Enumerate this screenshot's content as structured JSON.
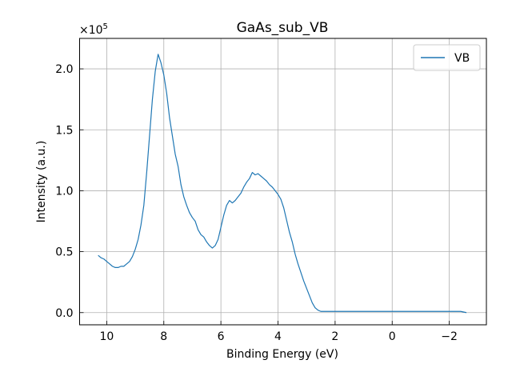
{
  "chart_data": {
    "type": "line",
    "title": "GaAs_sub_VB",
    "xlabel": "Binding Energy (eV)",
    "ylabel": "Intensity (a.u.)",
    "xlim": [
      10.95,
      -3.3
    ],
    "ylim": [
      -0.1,
      2.25
    ],
    "y_multiplier_label": "×10",
    "y_multiplier_exp": "5",
    "x_ticks": [
      10,
      8,
      6,
      4,
      2,
      0,
      -2
    ],
    "x_tick_labels": [
      "10",
      "8",
      "6",
      "4",
      "2",
      "0",
      "−2"
    ],
    "y_ticks": [
      0.0,
      0.5,
      1.0,
      1.5,
      2.0
    ],
    "y_tick_labels": [
      "0.0",
      "0.5",
      "1.0",
      "1.5",
      "2.0"
    ],
    "grid": true,
    "legend_position": "top-right",
    "line_color": "#1f77b4",
    "series": [
      {
        "name": "VB",
        "x": [
          10.3,
          10.2,
          10.1,
          10.0,
          9.9,
          9.8,
          9.7,
          9.6,
          9.5,
          9.4,
          9.3,
          9.2,
          9.1,
          9.0,
          8.9,
          8.8,
          8.7,
          8.6,
          8.5,
          8.4,
          8.3,
          8.2,
          8.1,
          8.0,
          7.9,
          7.8,
          7.7,
          7.6,
          7.5,
          7.4,
          7.3,
          7.2,
          7.1,
          7.0,
          6.9,
          6.8,
          6.7,
          6.6,
          6.5,
          6.4,
          6.3,
          6.2,
          6.1,
          6.0,
          5.9,
          5.8,
          5.7,
          5.6,
          5.5,
          5.4,
          5.3,
          5.2,
          5.1,
          5.0,
          4.9,
          4.8,
          4.7,
          4.6,
          4.5,
          4.4,
          4.3,
          4.2,
          4.1,
          4.0,
          3.9,
          3.8,
          3.7,
          3.6,
          3.5,
          3.4,
          3.3,
          3.2,
          3.1,
          3.0,
          2.9,
          2.8,
          2.7,
          2.6,
          2.5,
          2.4,
          2.3,
          2.2,
          2.1,
          2.0,
          1.9,
          1.8,
          1.7,
          1.6,
          1.5,
          1.4,
          1.3,
          1.2,
          1.1,
          1.0,
          0.9,
          0.8,
          0.6,
          0.4,
          0.2,
          0.0,
          -0.2,
          -0.4,
          -0.6,
          -0.8,
          -1.0,
          -1.2,
          -1.4,
          -1.6,
          -1.8,
          -2.0,
          -2.2,
          -2.4,
          -2.6
        ],
        "values": [
          0.47,
          0.45,
          0.44,
          0.42,
          0.4,
          0.38,
          0.37,
          0.37,
          0.38,
          0.38,
          0.4,
          0.42,
          0.46,
          0.52,
          0.6,
          0.72,
          0.88,
          1.15,
          1.45,
          1.75,
          1.98,
          2.12,
          2.05,
          1.95,
          1.8,
          1.6,
          1.45,
          1.3,
          1.2,
          1.05,
          0.95,
          0.88,
          0.82,
          0.78,
          0.75,
          0.68,
          0.64,
          0.62,
          0.58,
          0.55,
          0.53,
          0.55,
          0.6,
          0.7,
          0.8,
          0.88,
          0.92,
          0.9,
          0.92,
          0.95,
          0.98,
          1.03,
          1.07,
          1.1,
          1.15,
          1.13,
          1.14,
          1.12,
          1.1,
          1.08,
          1.05,
          1.03,
          1.0,
          0.97,
          0.93,
          0.86,
          0.76,
          0.66,
          0.58,
          0.48,
          0.4,
          0.33,
          0.26,
          0.2,
          0.14,
          0.08,
          0.04,
          0.02,
          0.01,
          0.01,
          0.01,
          0.01,
          0.01,
          0.01,
          0.01,
          0.01,
          0.01,
          0.01,
          0.01,
          0.01,
          0.01,
          0.01,
          0.01,
          0.01,
          0.01,
          0.01,
          0.01,
          0.01,
          0.01,
          0.01,
          0.01,
          0.01,
          0.01,
          0.01,
          0.01,
          0.01,
          0.01,
          0.01,
          0.01,
          0.01,
          0.01,
          0.01,
          0.0
        ]
      }
    ]
  }
}
